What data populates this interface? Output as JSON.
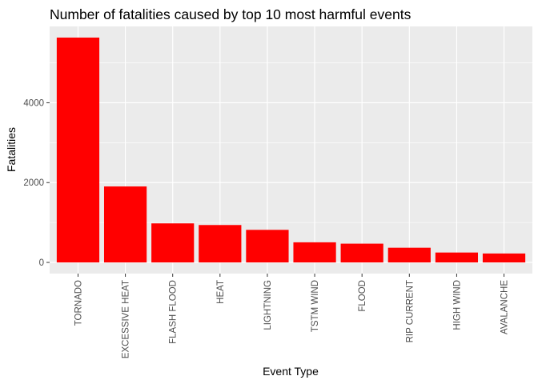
{
  "chart_data": {
    "type": "bar",
    "title": "Number of fatalities caused by top 10 most harmful events",
    "xlabel": "Event Type",
    "ylabel": "Fatalities",
    "categories": [
      "TORNADO",
      "EXCESSIVE HEAT",
      "FLASH FLOOD",
      "HEAT",
      "LIGHTNING",
      "TSTM WIND",
      "FLOOD",
      "RIP CURRENT",
      "HIGH WIND",
      "AVALANCHE"
    ],
    "values": [
      5633,
      1903,
      978,
      937,
      816,
      504,
      470,
      368,
      248,
      224
    ],
    "ylim": [
      -280,
      5913
    ],
    "yticks": [
      0,
      2000,
      4000
    ],
    "bar_color": "#ff0000",
    "panel_color": "#ebebeb",
    "grid": true
  }
}
